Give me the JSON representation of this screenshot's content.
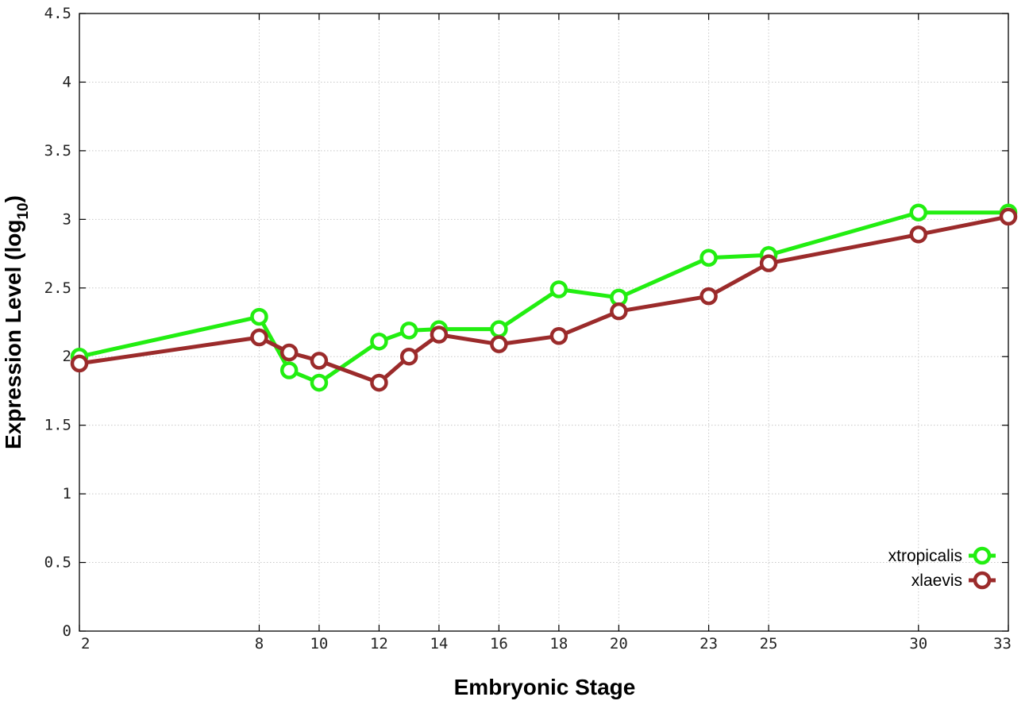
{
  "chart_data": {
    "type": "line",
    "title": "",
    "xlabel": "Embryonic Stage",
    "ylabel_main": "Expression Level (log",
    "ylabel_sub": "10",
    "ylabel_close": ")",
    "xlim": [
      2,
      33
    ],
    "ylim": [
      0,
      4.5
    ],
    "xticks": [
      2,
      8,
      10,
      12,
      14,
      16,
      18,
      20,
      23,
      25,
      30,
      33
    ],
    "yticks": [
      0,
      0.5,
      1,
      1.5,
      2,
      2.5,
      3,
      3.5,
      4,
      4.5
    ],
    "ytick_labels": [
      "0",
      "0.5",
      "1",
      "1.5",
      "2",
      "2.5",
      "3",
      "3.5",
      "4",
      "4.5"
    ],
    "grid": true,
    "legend_position": "bottom-right",
    "series": [
      {
        "name": "xtropicalis",
        "color": "#22ee11",
        "points": [
          [
            2,
            2.0
          ],
          [
            8,
            2.29
          ],
          [
            9,
            1.9
          ],
          [
            10,
            1.81
          ],
          [
            12,
            2.11
          ],
          [
            13,
            2.19
          ],
          [
            14,
            2.2
          ],
          [
            16,
            2.2
          ],
          [
            18,
            2.49
          ],
          [
            20,
            2.43
          ],
          [
            23,
            2.72
          ],
          [
            25,
            2.74
          ],
          [
            30,
            3.05
          ],
          [
            33,
            3.05
          ]
        ]
      },
      {
        "name": "xlaevis",
        "color": "#9b2b2b",
        "points": [
          [
            2,
            1.95
          ],
          [
            8,
            2.14
          ],
          [
            9,
            2.03
          ],
          [
            10,
            1.97
          ],
          [
            12,
            1.81
          ],
          [
            13,
            2.0
          ],
          [
            14,
            2.16
          ],
          [
            16,
            2.09
          ],
          [
            18,
            2.15
          ],
          [
            20,
            2.33
          ],
          [
            23,
            2.44
          ],
          [
            25,
            2.68
          ],
          [
            30,
            2.89
          ],
          [
            33,
            3.02
          ]
        ]
      }
    ]
  }
}
